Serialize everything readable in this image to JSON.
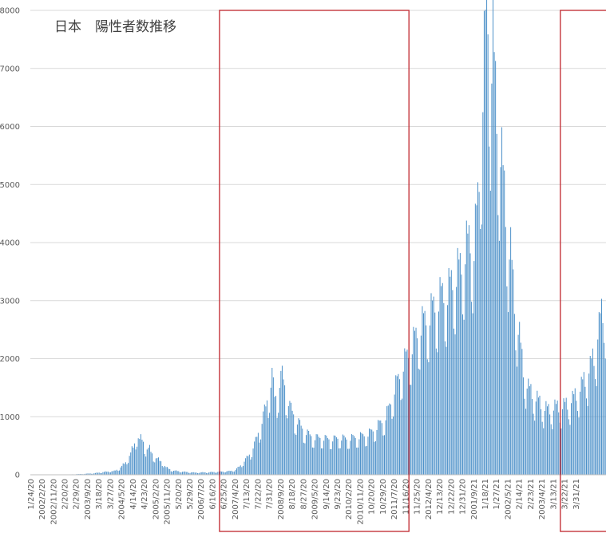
{
  "chart_data": {
    "type": "bar",
    "title": "日本　陽性者数推移",
    "xlabel": "",
    "ylabel": "",
    "ylim": [
      0,
      8000
    ],
    "yticks": [
      0,
      1000,
      2000,
      3000,
      4000,
      5000,
      6000,
      7000,
      8000
    ],
    "grid": true,
    "legend": "none",
    "bar_color": "#4a8fc8",
    "grid_color": "#d9d9d9",
    "highlight_color": "#c0252d",
    "x_tick_labels": [
      "1/24/20",
      "2002/2/20",
      "2002/11/20",
      "2/20/20",
      "2/29/20",
      "2003/9/20",
      "3/18/20",
      "3/27/20",
      "2004/5/20",
      "4/14/20",
      "4/23/20",
      "2005/2/20",
      "2005/11/20",
      "5/20/20",
      "5/29/20",
      "2006/7/20",
      "6/16/20",
      "6/25/20",
      "2007/4/20",
      "7/13/20",
      "7/22/20",
      "7/31/20",
      "2008/9/20",
      "8/18/20",
      "8/27/20",
      "2009/5/20",
      "9/14/20",
      "9/23/20",
      "2010/2/20",
      "2010/11/20",
      "10/20/20",
      "10/29/20",
      "2011/7/20",
      "11/16/20",
      "11/25/20",
      "2012/4/20",
      "12/13/20",
      "12/22/20",
      "12/31/20",
      "2001/9/21",
      "1/18/21",
      "1/27/21",
      "2002/5/21",
      "2/14/21",
      "2/23/21",
      "2003/4/21",
      "3/13/21",
      "3/22/21",
      "3/31/21"
    ],
    "anchors": [
      [
        0,
        0
      ],
      [
        20,
        2
      ],
      [
        30,
        5
      ],
      [
        40,
        12
      ],
      [
        50,
        25
      ],
      [
        60,
        50
      ],
      [
        66,
        60
      ],
      [
        70,
        100
      ],
      [
        75,
        200
      ],
      [
        79,
        350
      ],
      [
        82,
        500
      ],
      [
        84,
        650
      ],
      [
        86,
        560
      ],
      [
        88,
        580
      ],
      [
        91,
        420
      ],
      [
        94,
        420
      ],
      [
        97,
        300
      ],
      [
        100,
        260
      ],
      [
        104,
        200
      ],
      [
        107,
        120
      ],
      [
        112,
        70
      ],
      [
        120,
        50
      ],
      [
        130,
        35
      ],
      [
        140,
        40
      ],
      [
        150,
        50
      ],
      [
        158,
        60
      ],
      [
        162,
        80
      ],
      [
        166,
        150
      ],
      [
        170,
        250
      ],
      [
        174,
        350
      ],
      [
        178,
        550
      ],
      [
        182,
        800
      ],
      [
        186,
        1100
      ],
      [
        189,
        1400
      ],
      [
        191,
        1600
      ],
      [
        193,
        1250
      ],
      [
        195,
        1300
      ],
      [
        197,
        1500
      ],
      [
        199,
        1600
      ],
      [
        201,
        1450
      ],
      [
        205,
        1100
      ],
      [
        210,
        900
      ],
      [
        215,
        750
      ],
      [
        220,
        650
      ],
      [
        225,
        600
      ],
      [
        230,
        600
      ],
      [
        235,
        580
      ],
      [
        240,
        580
      ],
      [
        245,
        600
      ],
      [
        250,
        580
      ],
      [
        255,
        600
      ],
      [
        260,
        620
      ],
      [
        265,
        640
      ],
      [
        270,
        700
      ],
      [
        275,
        800
      ],
      [
        280,
        900
      ],
      [
        284,
        1100
      ],
      [
        288,
        1400
      ],
      [
        292,
        1600
      ],
      [
        295,
        1800
      ],
      [
        300,
        2000
      ],
      [
        304,
        2200
      ],
      [
        308,
        2400
      ],
      [
        312,
        2500
      ],
      [
        316,
        2600
      ],
      [
        320,
        2750
      ],
      [
        325,
        2900
      ],
      [
        330,
        2950
      ],
      [
        335,
        3200
      ],
      [
        340,
        3350
      ],
      [
        344,
        3650
      ],
      [
        348,
        3800
      ],
      [
        351,
        3700
      ],
      [
        354,
        4400
      ],
      [
        357,
        5800
      ],
      [
        360,
        7200
      ],
      [
        362,
        7600
      ],
      [
        364,
        6600
      ],
      [
        366,
        6900
      ],
      [
        368,
        6200
      ],
      [
        370,
        5600
      ],
      [
        372,
        5300
      ],
      [
        374,
        4800
      ],
      [
        376,
        4300
      ],
      [
        378,
        3800
      ],
      [
        380,
        3600
      ],
      [
        383,
        2800
      ],
      [
        386,
        2400
      ],
      [
        390,
        1700
      ],
      [
        394,
        1400
      ],
      [
        398,
        1300
      ],
      [
        402,
        1200
      ],
      [
        406,
        1100
      ],
      [
        410,
        1050
      ],
      [
        415,
        1100
      ],
      [
        420,
        1100
      ],
      [
        425,
        1150
      ],
      [
        430,
        1250
      ],
      [
        435,
        1400
      ],
      [
        440,
        1600
      ],
      [
        444,
        1800
      ],
      [
        447,
        2000
      ],
      [
        450,
        2400
      ],
      [
        453,
        2700
      ],
      [
        455,
        2800
      ]
    ],
    "highlight_windows": [
      {
        "from": "6/25/20",
        "to": "11/16/20"
      },
      {
        "from": "3/22/21",
        "to": "3/31/21"
      }
    ]
  }
}
